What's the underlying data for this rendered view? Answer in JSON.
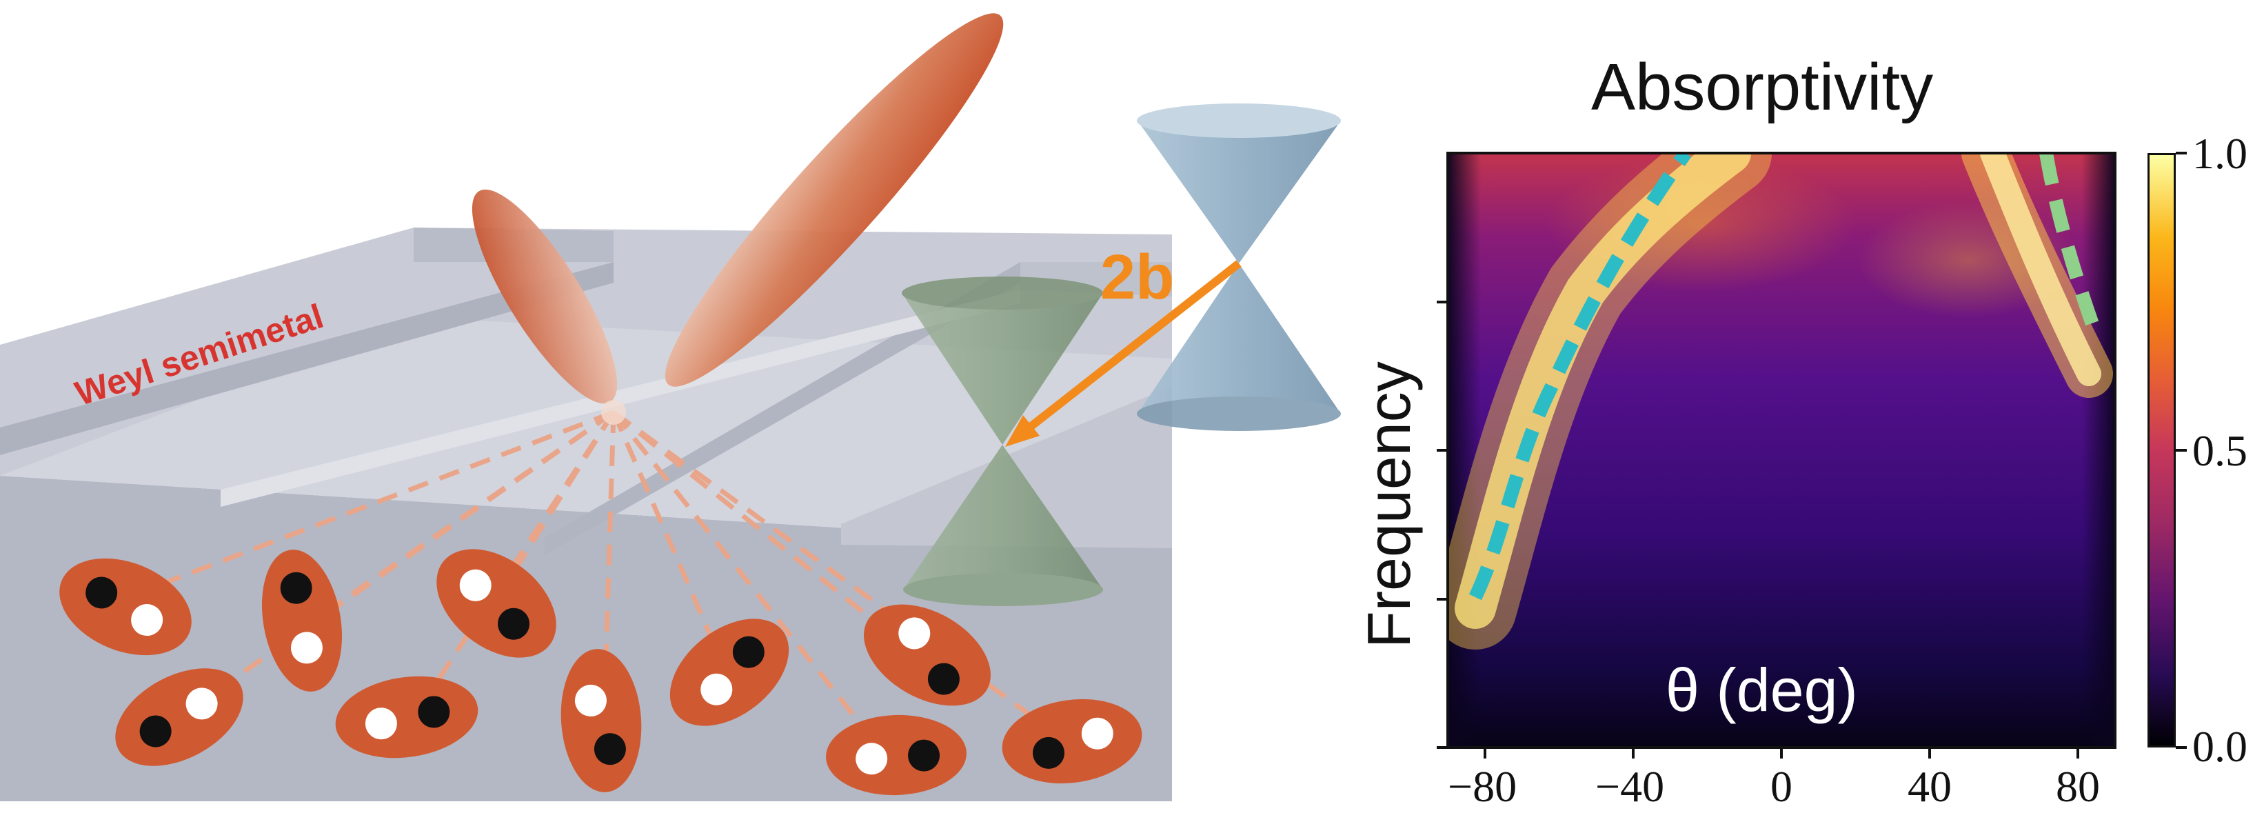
{
  "diagram": {
    "material_label": "Weyl semimetal",
    "splitting_label": "2b",
    "colors": {
      "emission_lobe": "#c8502c",
      "dipole_fill": "#cf5a32",
      "dipole_dash": "#e9a58a",
      "arrow": "#f28a1c",
      "cone_upper": "#8fb0c8",
      "cone_lower": "#8ea88a",
      "label_red": "#d8342f",
      "slab": "#c3c7d2"
    }
  },
  "heatmap": {
    "title": "Absorptivity",
    "xlabel": "θ (deg)",
    "ylabel": "Frequency",
    "x_ticks": [
      "−80",
      "−40",
      "0",
      "40",
      "80"
    ],
    "colorbar_ticks": [
      "1.0",
      "0.5",
      "0.0"
    ],
    "colormap": "inferno"
  },
  "chart_data": {
    "type": "heatmap",
    "title": "Absorptivity",
    "xlabel": "θ (deg)",
    "ylabel": "Frequency",
    "x_ticks": [
      -80,
      -40,
      0,
      40,
      80
    ],
    "xlim": [
      -90,
      90
    ],
    "y_ticks_labeled": false,
    "colorbar": {
      "range": [
        0.0,
        1.0
      ],
      "ticks": [
        0.0,
        0.5,
        1.0
      ],
      "colormap": "inferno"
    },
    "dashed_curves": [
      {
        "color": "#2bbcc6",
        "description_points": [
          [
            -84,
            0.26
          ],
          [
            -75,
            0.37
          ],
          [
            -62,
            0.62
          ],
          [
            -48,
            0.85
          ],
          [
            -25,
            1.0
          ]
        ]
      },
      {
        "color": "#8fd08a",
        "description_points": [
          [
            68,
            1.0
          ],
          [
            75,
            0.86
          ],
          [
            85,
            0.72
          ]
        ]
      }
    ]
  }
}
